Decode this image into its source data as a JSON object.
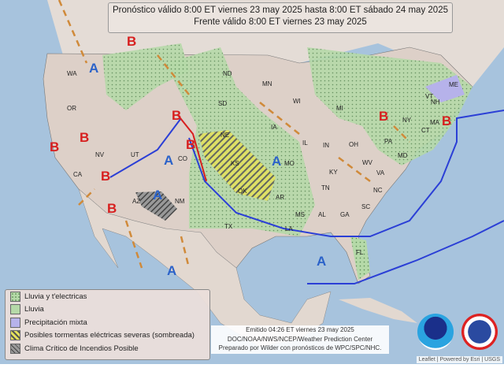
{
  "header": {
    "line1": "Pronóstico válido 8:00 ET viernes 23 may 2025 hasta 8:00 ET sábado 24 may 2025",
    "line2": "Frente válido 8:00 ET viernes 23 may 2025"
  },
  "states": [
    "WA",
    "OR",
    "CA",
    "NV",
    "UT",
    "AZ",
    "NM",
    "CO",
    "SD",
    "NE",
    "KS",
    "OK",
    "TX",
    "MN",
    "WI",
    "MI",
    "IA",
    "MO",
    "AR",
    "LA",
    "MS",
    "AL",
    "GA",
    "FL",
    "SC",
    "NC",
    "TN",
    "KY",
    "VA",
    "WV",
    "OH",
    "IN",
    "IL",
    "PA",
    "NY",
    "NH",
    "MA",
    "CT",
    "VT",
    "ME",
    "MD",
    "ND"
  ],
  "pressure_centers": {
    "high_label": "A",
    "low_label": "B"
  },
  "legend": {
    "items": [
      {
        "label": "Lluvia y t'electricas",
        "color": "#b5d9a8"
      },
      {
        "label": "Lluvia",
        "color": "#b5d9a8"
      },
      {
        "label": "Precipitación mixta",
        "color": "#b6b2ea"
      },
      {
        "label": "Posibles tormentas eléctricas severas (sombreada)",
        "color": "#e6e25a"
      },
      {
        "label": "Clima Crítico de Incendios Posible",
        "color": "#8a8a8a"
      }
    ]
  },
  "issued": {
    "line1": "Emitido 04:26 ET viernes 23 may 2025",
    "line2": "DOC/NOAA/NWS/NCEP/Weather Prediction Center",
    "line3": "Preparado por Wilder con pronósticos de WPC/SPC/NHC."
  },
  "logos": [
    "NOAA",
    "NATIONAL WEATHER SERVICE"
  ],
  "attribution": "Leaflet | Powered by Esri | USGS",
  "colors": {
    "high": "#2b62c9",
    "low": "#d71f1f",
    "cold_front": "#2b3fd6",
    "rain": "#b5d9a8"
  }
}
